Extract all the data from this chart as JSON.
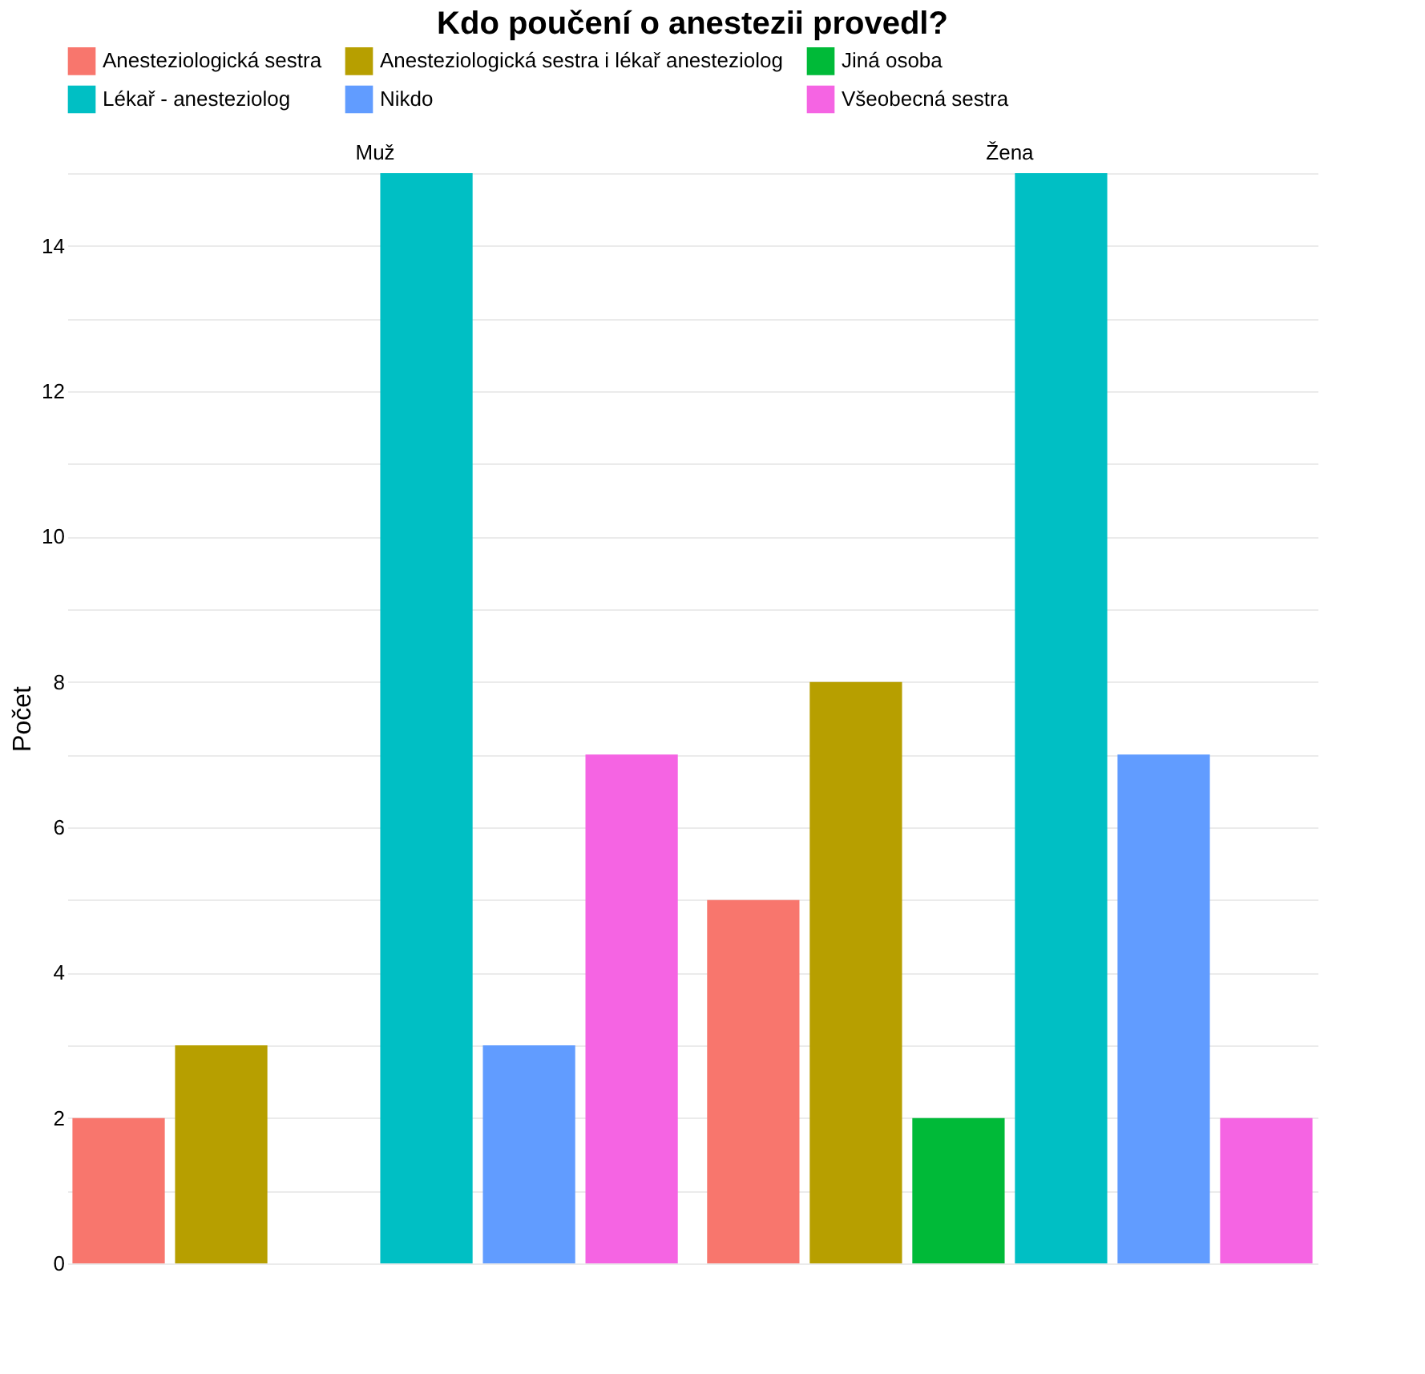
{
  "chart_data": {
    "type": "bar",
    "title": "Kdo poučení o anestezii provedl?",
    "ylabel": "Počet",
    "categories": [
      "Muž",
      "Žena"
    ],
    "series": [
      {
        "name": "Anesteziologická sestra",
        "color": "#f8766d",
        "values": [
          2,
          5
        ]
      },
      {
        "name": "Anesteziologická sestra i lékař anesteziolog",
        "color": "#b79f00",
        "values": [
          3,
          8
        ]
      },
      {
        "name": "Jiná osoba",
        "color": "#00ba38",
        "values": [
          0,
          2
        ]
      },
      {
        "name": "Lékař - anesteziolog",
        "color": "#00bfc4",
        "values": [
          15,
          15
        ]
      },
      {
        "name": "Nikdo",
        "color": "#619cff",
        "values": [
          3,
          7
        ]
      },
      {
        "name": "Všeobecná sestra",
        "color": "#f564e3",
        "values": [
          7,
          2
        ]
      }
    ],
    "ylim": [
      0,
      15
    ],
    "yticks": [
      0,
      {
        "value": 1,
        "label": null
      },
      2,
      {
        "value": 3,
        "label": null
      },
      4,
      {
        "value": 5,
        "label": null
      },
      6,
      {
        "value": 7,
        "label": null
      },
      8,
      {
        "value": 9,
        "label": null
      },
      10,
      {
        "value": 11,
        "label": null
      },
      12,
      {
        "value": 13,
        "label": null
      },
      14,
      {
        "value": 15,
        "label": null
      }
    ],
    "grid": "y",
    "legend": "top"
  }
}
